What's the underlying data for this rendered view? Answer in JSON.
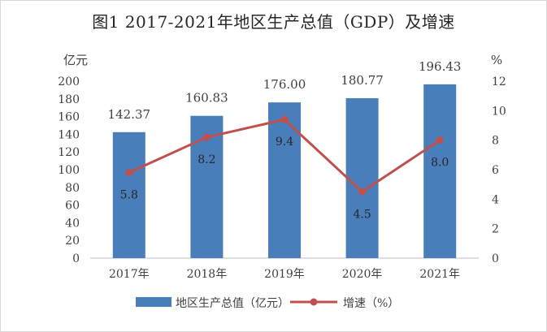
{
  "chart_data": {
    "type": "bar",
    "title": "图1  2017-2021年地区生产总值（GDP）及增速",
    "categories": [
      "2017年",
      "2018年",
      "2019年",
      "2020年",
      "2021年"
    ],
    "series": [
      {
        "name": "地区生产总值（亿元）",
        "type": "bar",
        "axis": "left",
        "color": "#4a7ebb",
        "values": [
          142.37,
          160.83,
          176.0,
          180.77,
          196.43
        ],
        "labels": [
          "142.37",
          "160.83",
          "176.00",
          "180.77",
          "196.43"
        ]
      },
      {
        "name": "增速（%）",
        "type": "line",
        "axis": "right",
        "color": "#c0504d",
        "values": [
          5.8,
          8.2,
          9.4,
          4.5,
          8.0
        ],
        "labels": [
          "5.8",
          "8.2",
          "9.4",
          "4.5",
          "8.0"
        ]
      }
    ],
    "y_left": {
      "label": "亿元",
      "min": 0,
      "max": 200,
      "ticks": [
        "0",
        "20",
        "40",
        "60",
        "80",
        "100",
        "120",
        "140",
        "160",
        "180",
        "200"
      ]
    },
    "y_right": {
      "label": "%",
      "min": 0,
      "max": 12,
      "ticks": [
        "0",
        "2",
        "4",
        "6",
        "8",
        "10",
        "12"
      ]
    },
    "grid": false,
    "legend_position": "bottom"
  }
}
